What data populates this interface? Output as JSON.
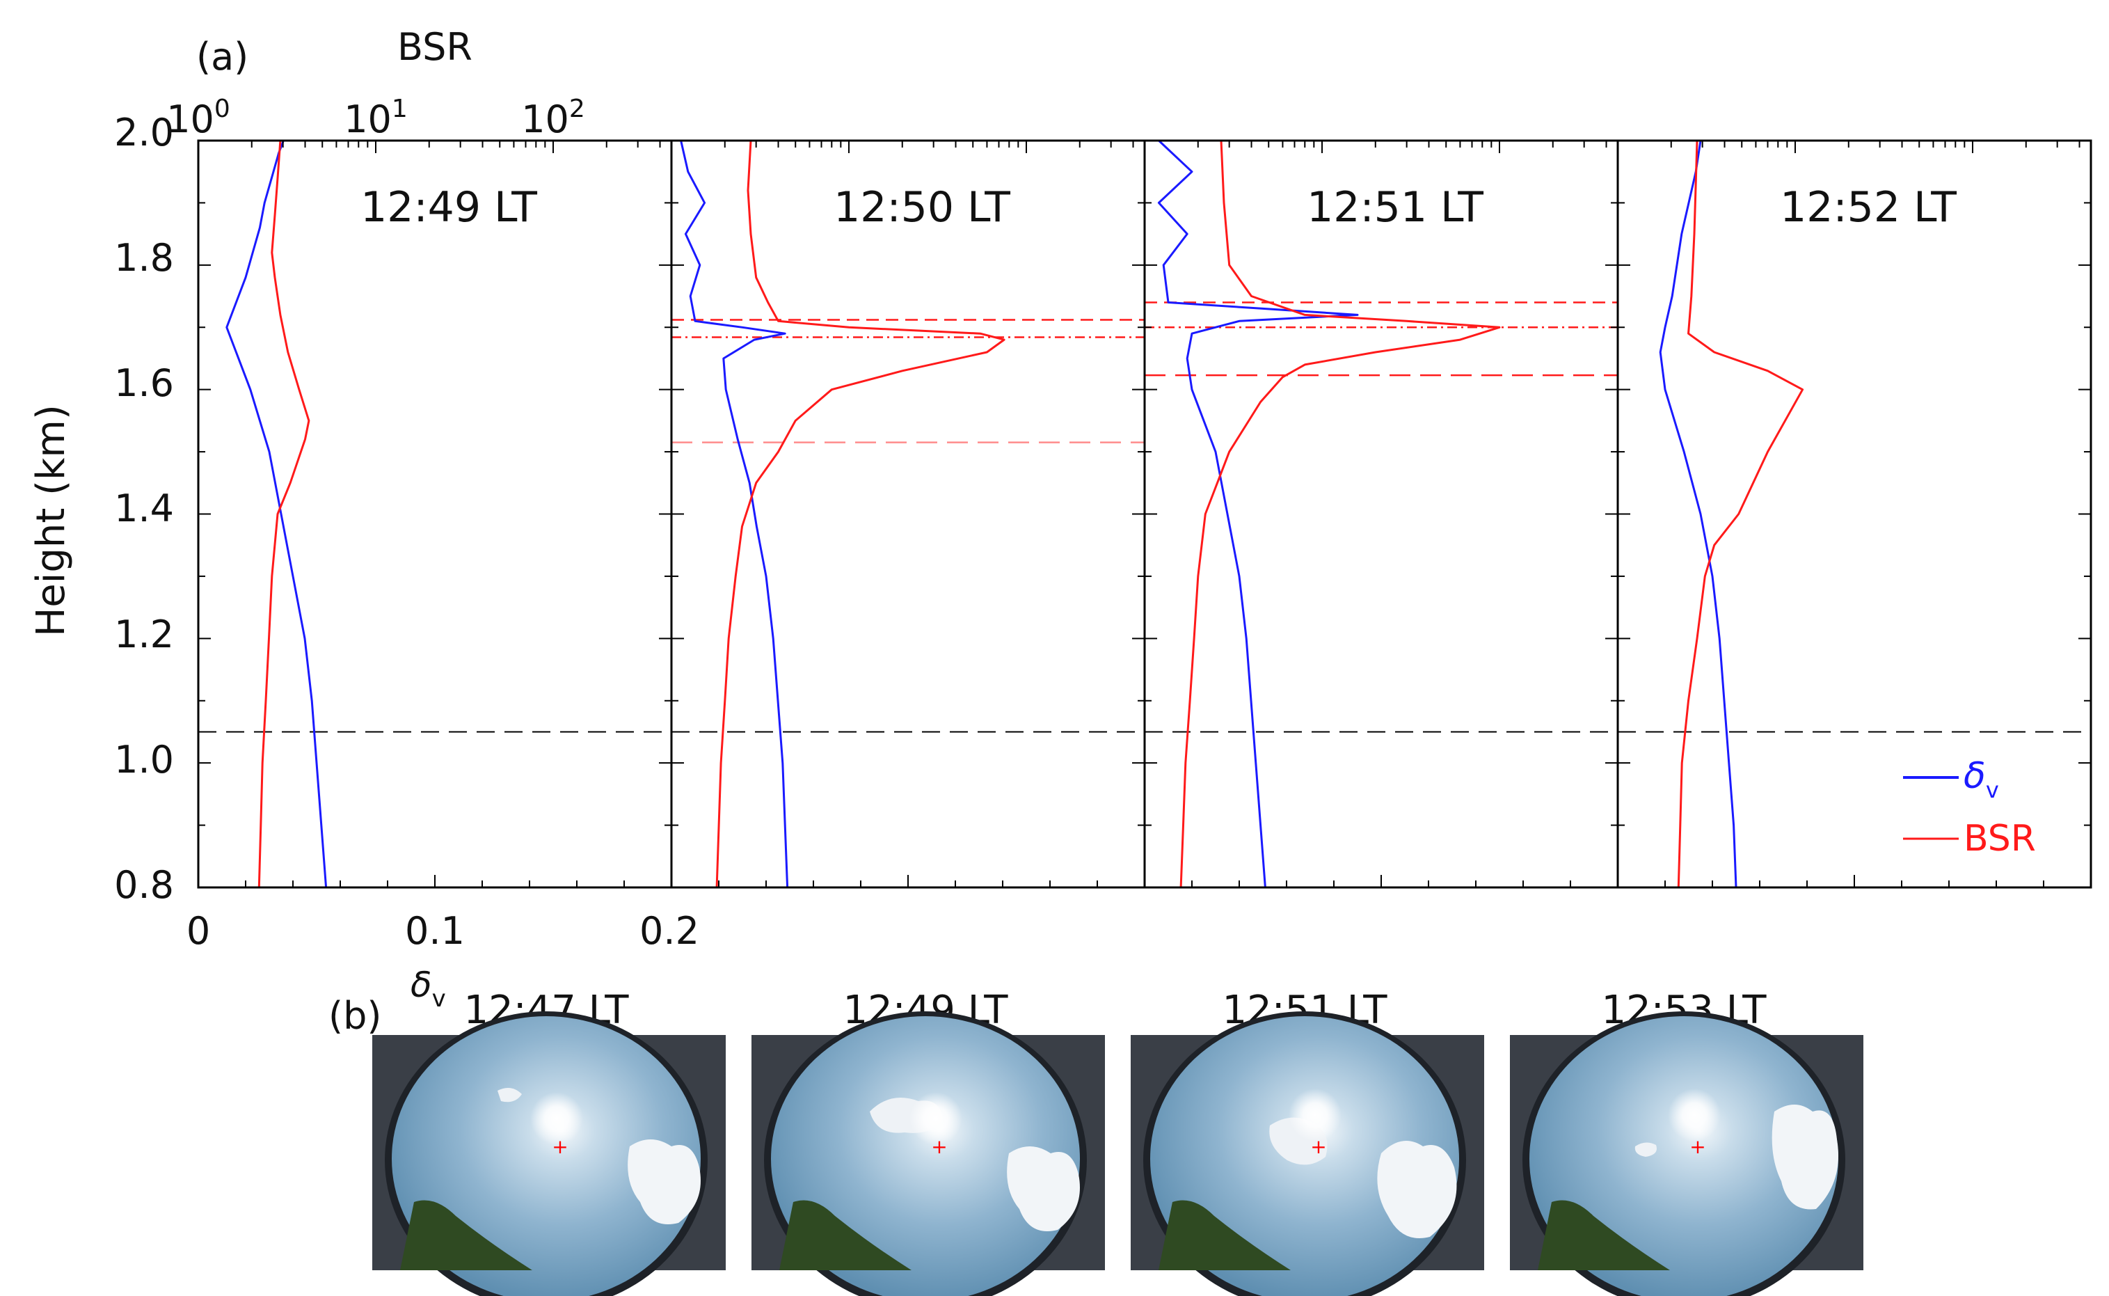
{
  "panel_a": {
    "label": "(a)",
    "top_axis_label": "BSR",
    "y_axis_label": "Height (km)",
    "x_axis_label": "δ",
    "x_axis_label_sub": "v",
    "top_tick_labels": [
      {
        "base": "10",
        "exp": "0"
      },
      {
        "base": "10",
        "exp": "1"
      },
      {
        "base": "10",
        "exp": "2"
      }
    ],
    "y_tick_labels": [
      "0.8",
      "1.0",
      "1.2",
      "1.4",
      "1.6",
      "1.8",
      "2.0"
    ],
    "x_tick_labels": [
      "0",
      "0.1",
      "0.2"
    ],
    "legend": {
      "delta": "δ",
      "delta_sub": "v",
      "bsr": "BSR"
    }
  },
  "panel_b": {
    "label": "(b)",
    "photos": [
      {
        "time": "12:47 LT"
      },
      {
        "time": "12:49 LT"
      },
      {
        "time": "12:51 LT"
      },
      {
        "time": "12:53 LT"
      }
    ]
  },
  "colors": {
    "delta": "#1a1aff",
    "bsr": "#ff1a1a",
    "ref_line": "#000000"
  },
  "chart_data": [
    {
      "type": "line",
      "title": "12:49 LT",
      "y": "Height (km)",
      "ylim": [
        0.8,
        2.0
      ],
      "ref_height_km": 1.05,
      "series": [
        {
          "name": "δv",
          "axis": "bottom",
          "xlim": [
            0,
            0.2
          ],
          "points": [
            [
              0.054,
              0.8
            ],
            [
              0.052,
              0.9
            ],
            [
              0.05,
              1.0
            ],
            [
              0.048,
              1.1
            ],
            [
              0.045,
              1.2
            ],
            [
              0.04,
              1.3
            ],
            [
              0.035,
              1.4
            ],
            [
              0.03,
              1.5
            ],
            [
              0.022,
              1.6
            ],
            [
              0.016,
              1.66
            ],
            [
              0.012,
              1.7
            ],
            [
              0.016,
              1.74
            ],
            [
              0.02,
              1.78
            ],
            [
              0.023,
              1.82
            ],
            [
              0.026,
              1.86
            ],
            [
              0.028,
              1.9
            ],
            [
              0.031,
              1.94
            ],
            [
              0.034,
              1.98
            ],
            [
              0.036,
              2.0
            ]
          ]
        },
        {
          "name": "BSR",
          "axis": "top",
          "scale": "log",
          "xlim": [
            1,
            100
          ],
          "points": [
            [
              2.2,
              0.8
            ],
            [
              2.25,
              0.9
            ],
            [
              2.3,
              1.0
            ],
            [
              2.4,
              1.1
            ],
            [
              2.5,
              1.2
            ],
            [
              2.6,
              1.3
            ],
            [
              2.8,
              1.4
            ],
            [
              3.3,
              1.45
            ],
            [
              4.0,
              1.52
            ],
            [
              4.2,
              1.55
            ],
            [
              3.7,
              1.6
            ],
            [
              3.2,
              1.66
            ],
            [
              2.9,
              1.72
            ],
            [
              2.7,
              1.78
            ],
            [
              2.6,
              1.82
            ],
            [
              2.7,
              1.88
            ],
            [
              2.8,
              1.94
            ],
            [
              2.9,
              2.0
            ]
          ]
        }
      ]
    },
    {
      "type": "line",
      "title": "12:50 LT",
      "y": "Height (km)",
      "ylim": [
        0.8,
        2.0
      ],
      "ref_height_km": 1.05,
      "marker_heights_km": [
        1.712,
        1.684,
        1.515
      ],
      "series": [
        {
          "name": "δv",
          "axis": "bottom",
          "xlim": [
            0,
            0.2
          ],
          "points": [
            [
              0.049,
              0.8
            ],
            [
              0.048,
              0.9
            ],
            [
              0.047,
              1.0
            ],
            [
              0.045,
              1.1
            ],
            [
              0.043,
              1.2
            ],
            [
              0.04,
              1.3
            ],
            [
              0.036,
              1.38
            ],
            [
              0.033,
              1.45
            ],
            [
              0.028,
              1.52
            ],
            [
              0.023,
              1.6
            ],
            [
              0.022,
              1.65
            ],
            [
              0.035,
              1.68
            ],
            [
              0.048,
              1.69
            ],
            [
              0.03,
              1.7
            ],
            [
              0.01,
              1.71
            ],
            [
              0.008,
              1.75
            ],
            [
              0.012,
              1.8
            ],
            [
              0.006,
              1.85
            ],
            [
              0.014,
              1.9
            ],
            [
              0.007,
              1.95
            ],
            [
              0.004,
              2.0
            ]
          ]
        },
        {
          "name": "BSR",
          "axis": "top",
          "scale": "log",
          "xlim": [
            1,
            100
          ],
          "points": [
            [
              1.8,
              0.8
            ],
            [
              1.85,
              0.9
            ],
            [
              1.9,
              1.0
            ],
            [
              2.0,
              1.1
            ],
            [
              2.1,
              1.2
            ],
            [
              2.3,
              1.3
            ],
            [
              2.5,
              1.38
            ],
            [
              3.0,
              1.45
            ],
            [
              4.0,
              1.5
            ],
            [
              5.0,
              1.55
            ],
            [
              8.0,
              1.6
            ],
            [
              20,
              1.63
            ],
            [
              60,
              1.66
            ],
            [
              75,
              1.68
            ],
            [
              55,
              1.69
            ],
            [
              10,
              1.7
            ],
            [
              4,
              1.71
            ],
            [
              3.5,
              1.74
            ],
            [
              3.0,
              1.78
            ],
            [
              2.8,
              1.85
            ],
            [
              2.7,
              1.92
            ],
            [
              2.8,
              2.0
            ]
          ]
        }
      ]
    },
    {
      "type": "line",
      "title": "12:51 LT",
      "y": "Height (km)",
      "ylim": [
        0.8,
        2.0
      ],
      "ref_height_km": 1.05,
      "marker_heights_km": [
        1.74,
        1.7,
        1.623
      ],
      "series": [
        {
          "name": "δv",
          "axis": "bottom",
          "xlim": [
            0,
            0.2
          ],
          "points": [
            [
              0.051,
              0.8
            ],
            [
              0.049,
              0.9
            ],
            [
              0.047,
              1.0
            ],
            [
              0.045,
              1.1
            ],
            [
              0.043,
              1.2
            ],
            [
              0.04,
              1.3
            ],
            [
              0.035,
              1.4
            ],
            [
              0.03,
              1.5
            ],
            [
              0.02,
              1.6
            ],
            [
              0.018,
              1.65
            ],
            [
              0.02,
              1.69
            ],
            [
              0.04,
              1.71
            ],
            [
              0.09,
              1.72
            ],
            [
              0.05,
              1.73
            ],
            [
              0.01,
              1.74
            ],
            [
              0.008,
              1.8
            ],
            [
              0.018,
              1.85
            ],
            [
              0.006,
              1.9
            ],
            [
              0.02,
              1.95
            ],
            [
              0.006,
              2.0
            ]
          ]
        },
        {
          "name": "BSR",
          "axis": "top",
          "scale": "log",
          "xlim": [
            1,
            100
          ],
          "points": [
            [
              1.6,
              0.8
            ],
            [
              1.65,
              0.9
            ],
            [
              1.7,
              1.0
            ],
            [
              1.8,
              1.1
            ],
            [
              1.9,
              1.2
            ],
            [
              2.0,
              1.3
            ],
            [
              2.2,
              1.4
            ],
            [
              3.0,
              1.5
            ],
            [
              4.5,
              1.58
            ],
            [
              6.0,
              1.62
            ],
            [
              8.0,
              1.64
            ],
            [
              20,
              1.66
            ],
            [
              60,
              1.68
            ],
            [
              100,
              1.7
            ],
            [
              30,
              1.71
            ],
            [
              8,
              1.72
            ],
            [
              4,
              1.75
            ],
            [
              3.0,
              1.8
            ],
            [
              2.8,
              1.9
            ],
            [
              2.7,
              2.0
            ]
          ]
        }
      ]
    },
    {
      "type": "line",
      "title": "12:52 LT",
      "y": "Height (km)",
      "ylim": [
        0.8,
        2.0
      ],
      "ref_height_km": 1.05,
      "series": [
        {
          "name": "δv",
          "axis": "bottom",
          "xlim": [
            0,
            0.2
          ],
          "points": [
            [
              0.05,
              0.8
            ],
            [
              0.049,
              0.9
            ],
            [
              0.047,
              1.0
            ],
            [
              0.045,
              1.1
            ],
            [
              0.043,
              1.2
            ],
            [
              0.04,
              1.3
            ],
            [
              0.035,
              1.4
            ],
            [
              0.028,
              1.5
            ],
            [
              0.02,
              1.6
            ],
            [
              0.018,
              1.66
            ],
            [
              0.02,
              1.7
            ],
            [
              0.023,
              1.75
            ],
            [
              0.025,
              1.8
            ],
            [
              0.027,
              1.85
            ],
            [
              0.03,
              1.9
            ],
            [
              0.033,
              1.95
            ],
            [
              0.035,
              2.0
            ]
          ]
        },
        {
          "name": "BSR",
          "axis": "top",
          "scale": "log",
          "xlim": [
            1,
            100
          ],
          "points": [
            [
              2.2,
              0.8
            ],
            [
              2.25,
              0.9
            ],
            [
              2.3,
              1.0
            ],
            [
              2.5,
              1.1
            ],
            [
              2.8,
              1.2
            ],
            [
              3.1,
              1.3
            ],
            [
              3.5,
              1.35
            ],
            [
              4.8,
              1.4
            ],
            [
              7,
              1.5
            ],
            [
              11,
              1.6
            ],
            [
              7,
              1.63
            ],
            [
              3.5,
              1.66
            ],
            [
              2.5,
              1.69
            ],
            [
              2.6,
              1.75
            ],
            [
              2.7,
              1.85
            ],
            [
              2.8,
              2.0
            ]
          ]
        }
      ]
    }
  ]
}
